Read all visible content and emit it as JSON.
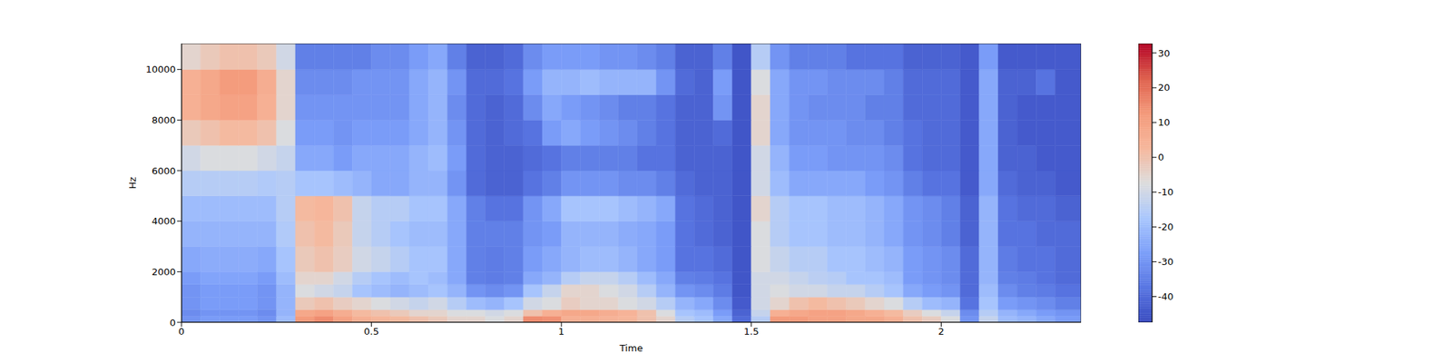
{
  "chart_data": {
    "type": "heatmap",
    "xlabel": "Time",
    "ylabel": "Hz",
    "color": "coolwarm",
    "xlim": [
      0,
      2.368
    ],
    "ylim": [
      0,
      11025
    ],
    "xticks": [
      0,
      0.5,
      1,
      1.5,
      2
    ],
    "yticks": [
      0,
      2000,
      4000,
      6000,
      8000,
      10000
    ],
    "x_edges": [
      0,
      0.05,
      0.1,
      0.15,
      0.2,
      0.25,
      0.3,
      0.35,
      0.4,
      0.45,
      0.5,
      0.55,
      0.6,
      0.65,
      0.7,
      0.75,
      0.8,
      0.85,
      0.9,
      0.95,
      1.0,
      1.05,
      1.1,
      1.15,
      1.2,
      1.25,
      1.3,
      1.35,
      1.4,
      1.45,
      1.5,
      1.55,
      1.6,
      1.65,
      1.7,
      1.75,
      1.8,
      1.85,
      1.9,
      1.95,
      2.0,
      2.05,
      2.1,
      2.15,
      2.2,
      2.25,
      2.3,
      2.368
    ],
    "y_edges": [
      0,
      250,
      500,
      1000,
      1500,
      2000,
      3000,
      4000,
      5000,
      6000,
      7000,
      8000,
      9000,
      10000,
      11025
    ],
    "z": [
      [
        -30,
        -28,
        -28,
        -28,
        -30,
        -20,
        12,
        15,
        10,
        5,
        3,
        2,
        0,
        -2,
        -5,
        -5,
        -8,
        -5,
        15,
        14,
        5,
        5,
        4,
        3,
        0,
        -5,
        -15,
        -18,
        -25,
        -40,
        -15,
        12,
        12,
        10,
        10,
        8,
        8,
        5,
        0,
        -3,
        -8,
        -30,
        -12,
        -20,
        -22,
        -25,
        -28
      ],
      [
        -32,
        -30,
        -30,
        -30,
        -32,
        -22,
        8,
        10,
        6,
        2,
        0,
        -2,
        -5,
        -5,
        -8,
        -8,
        -10,
        -8,
        0,
        5,
        8,
        8,
        6,
        4,
        0,
        -8,
        -18,
        -20,
        -28,
        -42,
        -12,
        5,
        8,
        10,
        10,
        8,
        5,
        2,
        -3,
        -8,
        -12,
        -32,
        -15,
        -22,
        -25,
        -28,
        -30
      ],
      [
        -30,
        -28,
        -28,
        -28,
        -30,
        -22,
        -2,
        0,
        -3,
        -5,
        -8,
        -10,
        -12,
        -10,
        -15,
        -20,
        -22,
        -18,
        -10,
        -8,
        -3,
        -5,
        -5,
        -8,
        -10,
        -15,
        -22,
        -25,
        -32,
        -44,
        -10,
        -5,
        0,
        2,
        0,
        -2,
        -5,
        -8,
        -15,
        -20,
        -22,
        -38,
        -18,
        -28,
        -30,
        -32,
        -35
      ],
      [
        -30,
        -28,
        -28,
        -28,
        -30,
        -22,
        -8,
        -10,
        -12,
        -18,
        -20,
        -22,
        -20,
        -18,
        -22,
        -30,
        -32,
        -30,
        -18,
        -12,
        -5,
        -5,
        -8,
        -10,
        -15,
        -22,
        -30,
        -32,
        -36,
        -45,
        -10,
        -8,
        -10,
        -10,
        -12,
        -12,
        -15,
        -18,
        -25,
        -28,
        -30,
        -40,
        -20,
        -32,
        -35,
        -36,
        -38
      ],
      [
        -28,
        -26,
        -26,
        -26,
        -28,
        -20,
        -5,
        -5,
        -10,
        -15,
        -18,
        -20,
        -18,
        -20,
        -25,
        -35,
        -36,
        -35,
        -25,
        -22,
        -15,
        -12,
        -12,
        -15,
        -20,
        -25,
        -35,
        -36,
        -38,
        -45,
        -10,
        -10,
        -12,
        -14,
        -15,
        -18,
        -18,
        -20,
        -28,
        -30,
        -32,
        -40,
        -22,
        -35,
        -36,
        -38,
        -40
      ],
      [
        -25,
        -24,
        -24,
        -24,
        -25,
        -18,
        -2,
        0,
        -3,
        -10,
        -12,
        -15,
        -18,
        -18,
        -25,
        -35,
        -36,
        -35,
        -28,
        -25,
        -22,
        -20,
        -20,
        -22,
        -25,
        -28,
        -38,
        -38,
        -40,
        -45,
        -8,
        -12,
        -15,
        -15,
        -18,
        -18,
        -20,
        -22,
        -28,
        -30,
        -32,
        -40,
        -22,
        -36,
        -38,
        -38,
        -40
      ],
      [
        -22,
        -22,
        -22,
        -22,
        -22,
        -16,
        0,
        2,
        -2,
        -12,
        -15,
        -18,
        -20,
        -20,
        -25,
        -35,
        -35,
        -35,
        -30,
        -28,
        -22,
        -22,
        -22,
        -24,
        -25,
        -28,
        -38,
        -40,
        -42,
        -45,
        -8,
        -15,
        -18,
        -18,
        -20,
        -20,
        -22,
        -25,
        -30,
        -32,
        -35,
        -42,
        -22,
        -38,
        -38,
        -40,
        -40
      ],
      [
        -20,
        -20,
        -20,
        -20,
        -20,
        -15,
        2,
        3,
        0,
        -12,
        -15,
        -15,
        -18,
        -18,
        -25,
        -35,
        -38,
        -38,
        -30,
        -25,
        -18,
        -18,
        -18,
        -20,
        -22,
        -25,
        -38,
        -40,
        -42,
        -45,
        -5,
        -15,
        -18,
        -18,
        -20,
        -20,
        -22,
        -25,
        -30,
        -32,
        -35,
        -42,
        -22,
        -38,
        -40,
        -40,
        -42
      ],
      [
        -15,
        -15,
        -15,
        -15,
        -16,
        -15,
        -18,
        -18,
        -20,
        -22,
        -25,
        -25,
        -22,
        -22,
        -30,
        -40,
        -42,
        -42,
        -38,
        -35,
        -30,
        -30,
        -30,
        -32,
        -32,
        -35,
        -40,
        -42,
        -42,
        -45,
        -10,
        -20,
        -25,
        -25,
        -25,
        -25,
        -28,
        -30,
        -35,
        -38,
        -38,
        -44,
        -25,
        -40,
        -42,
        -42,
        -44
      ],
      [
        -10,
        -8,
        -8,
        -8,
        -10,
        -12,
        -25,
        -25,
        -28,
        -25,
        -25,
        -25,
        -22,
        -20,
        -28,
        -40,
        -42,
        -42,
        -40,
        -38,
        -35,
        -35,
        -35,
        -35,
        -38,
        -38,
        -42,
        -42,
        -42,
        -45,
        -10,
        -22,
        -28,
        -28,
        -30,
        -30,
        -30,
        -32,
        -38,
        -40,
        -40,
        -44,
        -25,
        -42,
        -42,
        -44,
        -44
      ],
      [
        -2,
        0,
        2,
        2,
        0,
        -8,
        -28,
        -28,
        -30,
        -28,
        -28,
        -28,
        -25,
        -22,
        -30,
        -40,
        -42,
        -40,
        -38,
        -28,
        -25,
        -28,
        -30,
        -32,
        -35,
        -38,
        -42,
        -42,
        -40,
        -45,
        -5,
        -25,
        -30,
        -30,
        -30,
        -32,
        -32,
        -35,
        -38,
        -40,
        -40,
        -44,
        -25,
        -42,
        -44,
        -44,
        -44
      ],
      [
        5,
        8,
        10,
        10,
        5,
        -5,
        -30,
        -30,
        -30,
        -30,
        -30,
        -30,
        -25,
        -22,
        -32,
        -40,
        -42,
        -40,
        -32,
        -25,
        -28,
        -30,
        -32,
        -35,
        -35,
        -38,
        -42,
        -42,
        -30,
        -45,
        -5,
        -25,
        -30,
        -32,
        -32,
        -32,
        -35,
        -35,
        -40,
        -40,
        -40,
        -44,
        -25,
        -42,
        -44,
        -44,
        -44
      ],
      [
        5,
        8,
        12,
        12,
        6,
        -5,
        -32,
        -32,
        -32,
        -30,
        -30,
        -30,
        -25,
        -22,
        -30,
        -40,
        -40,
        -38,
        -28,
        -22,
        -22,
        -20,
        -22,
        -22,
        -22,
        -30,
        -40,
        -42,
        -28,
        -45,
        -8,
        -25,
        -30,
        -30,
        -32,
        -32,
        -32,
        -35,
        -40,
        -40,
        -40,
        -44,
        -25,
        -42,
        -42,
        -38,
        -44
      ],
      [
        -5,
        -2,
        0,
        0,
        -2,
        -10,
        -35,
        -35,
        -35,
        -35,
        -32,
        -32,
        -28,
        -25,
        -35,
        -42,
        -42,
        -40,
        -32,
        -28,
        -28,
        -28,
        -30,
        -30,
        -32,
        -35,
        -42,
        -42,
        -35,
        -45,
        -15,
        -30,
        -35,
        -35,
        -35,
        -38,
        -38,
        -38,
        -42,
        -42,
        -42,
        -44,
        -28,
        -44,
        -44,
        -44,
        -44
      ]
    ],
    "colorbar": {
      "range": [
        -47.4,
        32.7
      ],
      "ticks": [
        -40,
        -30,
        -20,
        -10,
        0,
        10,
        20,
        30
      ]
    }
  }
}
